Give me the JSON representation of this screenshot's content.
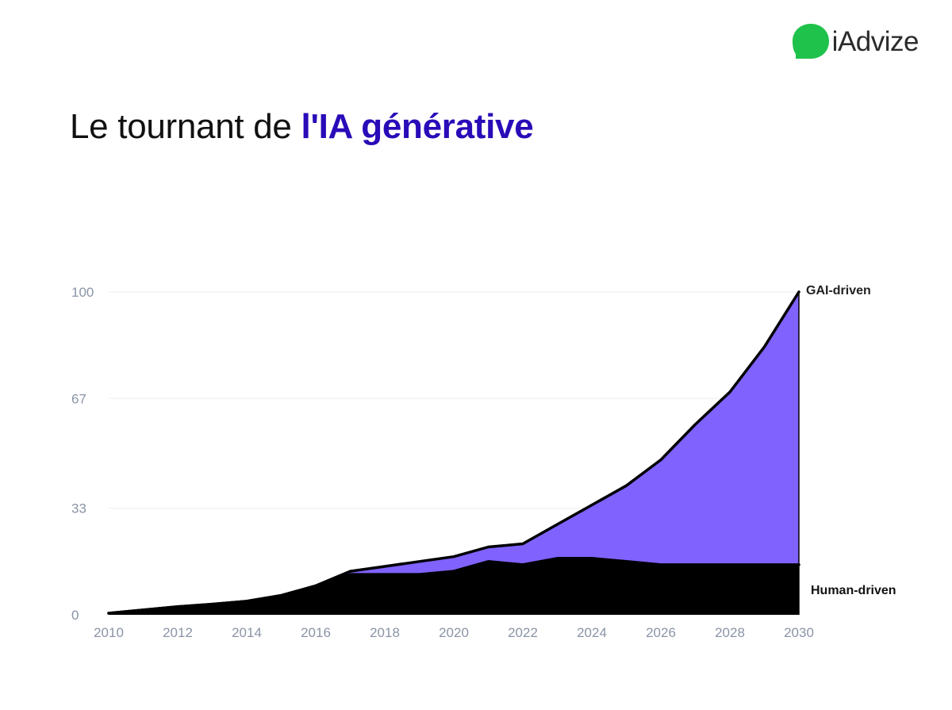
{
  "brand": {
    "name": "iAdvize",
    "color": "#1fc24a"
  },
  "title": {
    "prefix": "Le tournant de ",
    "highlight": "l'IA générative",
    "highlight_color": "#2a0bb8"
  },
  "chart_data": {
    "type": "area",
    "stacked": true,
    "x": [
      2010,
      2011,
      2012,
      2013,
      2014,
      2015,
      2016,
      2017,
      2018,
      2019,
      2020,
      2021,
      2022,
      2023,
      2024,
      2025,
      2026,
      2027,
      2028,
      2029,
      2030
    ],
    "xticks": [
      "2010",
      "2012",
      "2014",
      "2016",
      "2018",
      "2020",
      "2022",
      "2024",
      "2026",
      "2028",
      "2030"
    ],
    "yticks": [
      "0",
      "33",
      "67",
      "100"
    ],
    "ylim": [
      0,
      100
    ],
    "xlim": [
      2010,
      2030
    ],
    "grid": true,
    "series": [
      {
        "name": "Human-driven",
        "color": "#000000",
        "values": [
          0.5,
          1.5,
          2.5,
          3.3,
          4.2,
          6,
          9,
          12.5,
          12.5,
          12.5,
          13.5,
          16.5,
          15.5,
          17.5,
          17.5,
          16.5,
          15.5,
          15.5,
          15.5,
          15.5,
          15.5
        ]
      },
      {
        "name": "GAI-driven",
        "color": "#8062ff",
        "values": [
          0,
          0,
          0,
          0,
          0,
          0,
          0,
          1,
          2.5,
          4,
          4.5,
          4.5,
          6.5,
          10.5,
          16.5,
          23.5,
          32.5,
          43.5,
          53.5,
          67.5,
          84.5
        ]
      }
    ]
  }
}
